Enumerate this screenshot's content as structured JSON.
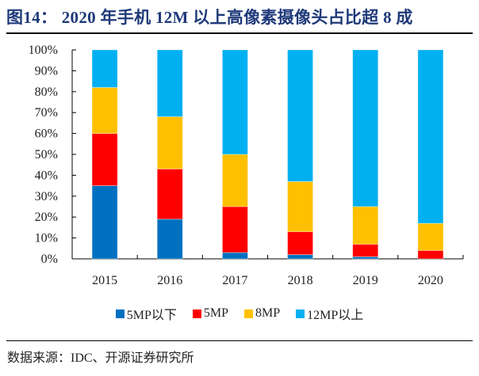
{
  "title": "图14：  2020 年手机 12M 以上高像素摄像头占比超 8 成",
  "source": "数据来源：IDC、开源证券研究所",
  "chart_data": {
    "type": "bar",
    "stacked": true,
    "title": "2020 年手机 12M 以上高像素摄像头占比超 8 成",
    "xlabel": "",
    "ylabel": "",
    "ylim": [
      0,
      100
    ],
    "yticks": [
      "0%",
      "10%",
      "20%",
      "30%",
      "40%",
      "50%",
      "60%",
      "70%",
      "80%",
      "90%",
      "100%"
    ],
    "categories": [
      "2015",
      "2016",
      "2017",
      "2018",
      "2019",
      "2020"
    ],
    "series": [
      {
        "name": "5MP以下",
        "color": "#0070C0",
        "values": [
          35,
          19,
          3,
          2,
          1,
          0
        ]
      },
      {
        "name": "5MP",
        "color": "#FF0000",
        "values": [
          25,
          24,
          22,
          11,
          6,
          4
        ]
      },
      {
        "name": "8MP",
        "color": "#FFC000",
        "values": [
          22,
          25,
          25,
          24,
          18,
          13
        ]
      },
      {
        "name": "12MP以上",
        "color": "#00B0F0",
        "values": [
          18,
          32,
          50,
          63,
          75,
          83
        ]
      }
    ],
    "grid": false,
    "legend_position": "bottom"
  }
}
